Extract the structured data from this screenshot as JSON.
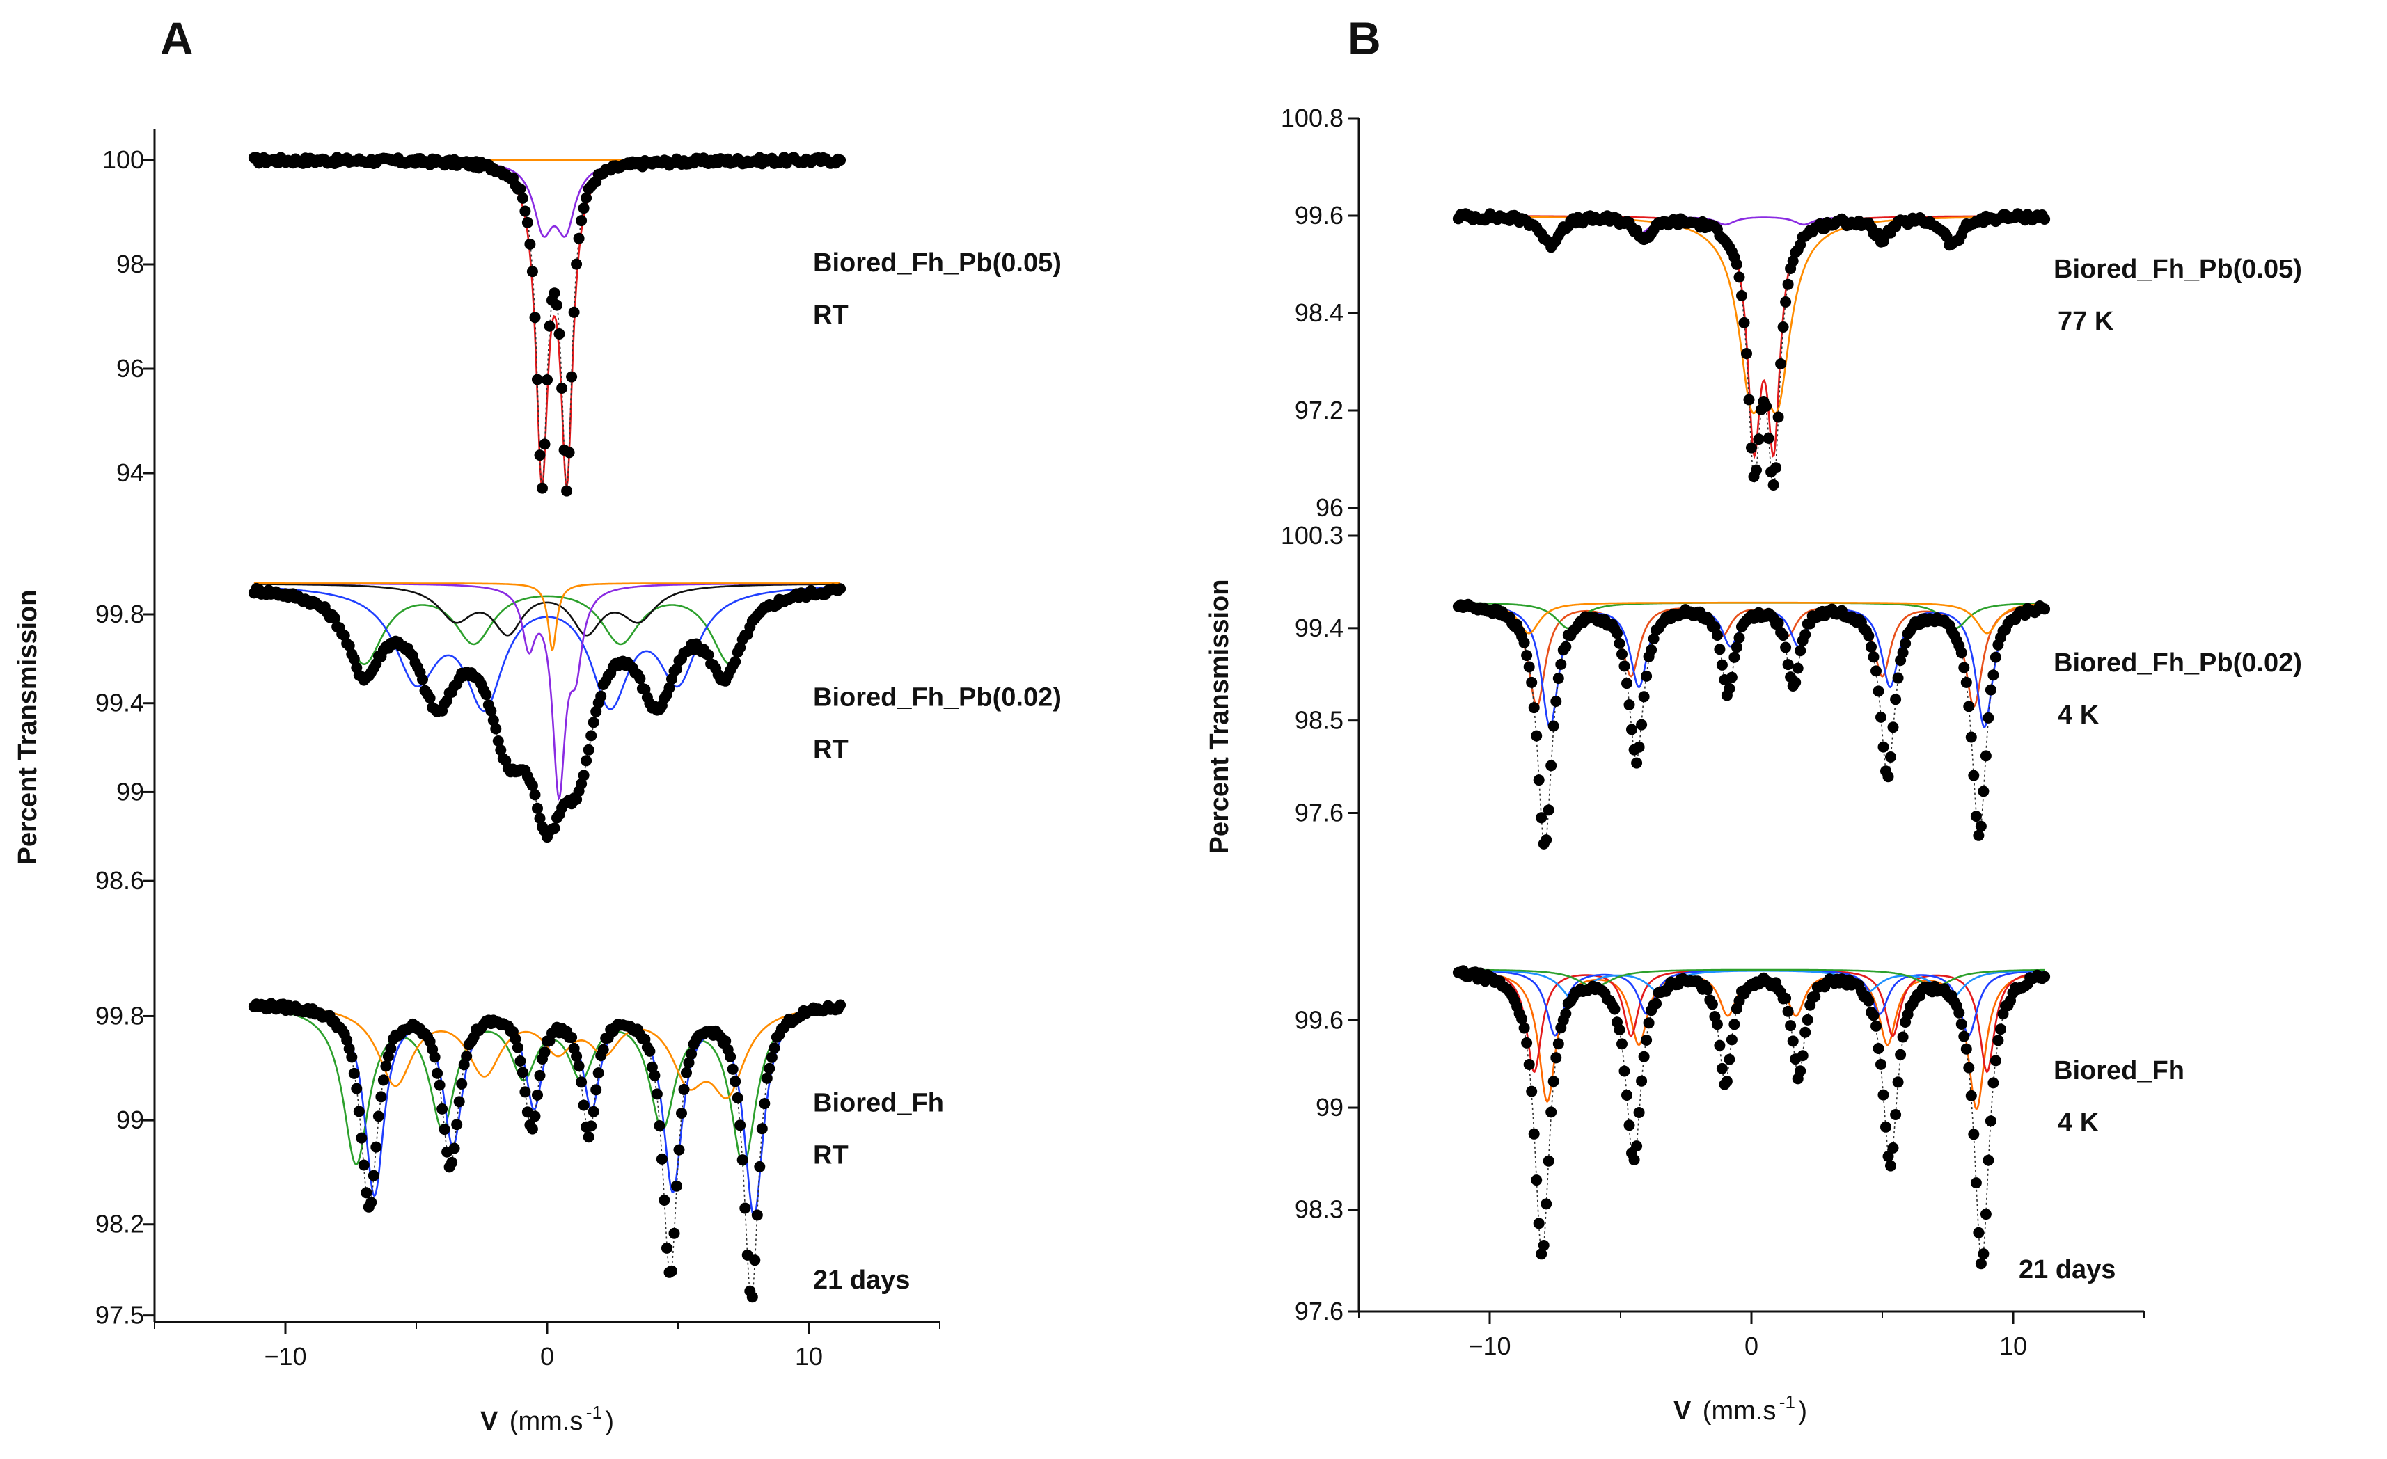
{
  "panels": [
    {
      "letter": "A",
      "xlabel": "V",
      "xunit": "(mm.s",
      "xunit_exp": "-1",
      "xunit_close": ")",
      "ylabel": "Percent Transmission"
    },
    {
      "letter": "B",
      "xlabel": "V",
      "xunit": "(mm.s",
      "xunit_exp": "-1",
      "xunit_close": ")",
      "ylabel": "Percent Transmission"
    }
  ],
  "chart_data": [
    {
      "type": "scatter",
      "panel": "A",
      "xlabel": "V (mm.s-1)",
      "ylabel": "Percent Transmission",
      "xlim": [
        -15,
        15
      ],
      "x_ticks": [
        -10,
        0,
        10
      ],
      "stack": [
        {
          "sample": "Biored_Fh_Pb(0.05)",
          "condition": "RT",
          "note": "",
          "yticks": [
            100,
            98,
            96,
            94
          ],
          "ylim": [
            93.8,
            100.6
          ],
          "baseline": 100,
          "min": 94.1,
          "peaks": [
            {
              "x": -0.2,
              "depth": 5.9,
              "w": 0.25
            },
            {
              "x": 0.75,
              "depth": 5.9,
              "w": 0.25
            }
          ],
          "fits": [
            {
              "color": "#e31a1c",
              "peaks": [
                {
                  "x": -0.2,
                  "depth": 5.8,
                  "w": 0.28
                },
                {
                  "x": 0.75,
                  "depth": 5.8,
                  "w": 0.28
                }
              ]
            },
            {
              "color": "#8a2be2",
              "peaks": [
                {
                  "x": -0.15,
                  "depth": 1.2,
                  "w": 0.45
                },
                {
                  "x": 0.7,
                  "depth": 1.2,
                  "w": 0.45
                }
              ]
            },
            {
              "color": "#ff8c00",
              "peaks": []
            }
          ]
        },
        {
          "sample": "Biored_Fh_Pb(0.02)",
          "condition": "RT",
          "note": "",
          "yticks": [
            99.8,
            99.4,
            99,
            98.6
          ],
          "ylim": [
            98.4,
            100.06
          ],
          "baseline": 99.94,
          "min": 98.75,
          "peaks": [
            {
              "x": -7.0,
              "depth": 0.35,
              "w": 0.8
            },
            {
              "x": -4.2,
              "depth": 0.45,
              "w": 0.9
            },
            {
              "x": -1.5,
              "depth": 0.55,
              "w": 0.9
            },
            {
              "x": 0.0,
              "depth": 0.75,
              "w": 0.8
            },
            {
              "x": 1.2,
              "depth": 0.6,
              "w": 0.8
            },
            {
              "x": 4.2,
              "depth": 0.45,
              "w": 0.9
            },
            {
              "x": 6.8,
              "depth": 0.35,
              "w": 0.8
            }
          ],
          "fits": [
            {
              "color": "#2ca02c",
              "peaks": [
                {
                  "x": -7.0,
                  "depth": 0.35,
                  "w": 0.9
                },
                {
                  "x": -2.8,
                  "depth": 0.25,
                  "w": 0.9
                },
                {
                  "x": 2.8,
                  "depth": 0.25,
                  "w": 0.9
                },
                {
                  "x": 7.0,
                  "depth": 0.35,
                  "w": 0.9
                }
              ]
            },
            {
              "color": "#1f3fff",
              "peaks": [
                {
                  "x": -5.0,
                  "depth": 0.4,
                  "w": 1.0
                },
                {
                  "x": -2.4,
                  "depth": 0.5,
                  "w": 0.9
                },
                {
                  "x": 2.4,
                  "depth": 0.5,
                  "w": 0.9
                },
                {
                  "x": 5.0,
                  "depth": 0.4,
                  "w": 0.9
                }
              ]
            },
            {
              "color": "#111111",
              "peaks": [
                {
                  "x": -3.5,
                  "depth": 0.15,
                  "w": 0.8
                },
                {
                  "x": -1.5,
                  "depth": 0.2,
                  "w": 0.7
                },
                {
                  "x": 1.5,
                  "depth": 0.2,
                  "w": 0.7
                },
                {
                  "x": 3.5,
                  "depth": 0.15,
                  "w": 0.8
                }
              ]
            },
            {
              "color": "#8a2be2",
              "peaks": [
                {
                  "x": -0.7,
                  "depth": 0.25,
                  "w": 0.3
                },
                {
                  "x": 0.45,
                  "depth": 0.9,
                  "w": 0.3
                },
                {
                  "x": 1.1,
                  "depth": 0.3,
                  "w": 0.3
                }
              ]
            },
            {
              "color": "#ff8c00",
              "peaks": [
                {
                  "x": 0.2,
                  "depth": 0.3,
                  "w": 0.2
                }
              ]
            }
          ]
        },
        {
          "sample": "Biored_Fh",
          "condition": "RT",
          "note": "21 days",
          "yticks": [
            99.8,
            99,
            98.2,
            97.5
          ],
          "ylim": [
            97.45,
            100.15
          ],
          "baseline": 99.9,
          "min": 97.45,
          "peaks": [
            {
              "x": -6.8,
              "depth": 1.55,
              "w": 0.4
            },
            {
              "x": -3.7,
              "depth": 1.2,
              "w": 0.4
            },
            {
              "x": -0.6,
              "depth": 0.9,
              "w": 0.35
            },
            {
              "x": 1.6,
              "depth": 0.95,
              "w": 0.35
            },
            {
              "x": 4.7,
              "depth": 2.05,
              "w": 0.35
            },
            {
              "x": 7.8,
              "depth": 2.25,
              "w": 0.35
            }
          ],
          "fits": [
            {
              "color": "#2ca02c",
              "peaks": [
                {
                  "x": -7.3,
                  "depth": 1.2,
                  "w": 0.6
                },
                {
                  "x": -4.0,
                  "depth": 0.9,
                  "w": 0.6
                },
                {
                  "x": -0.9,
                  "depth": 0.5,
                  "w": 0.6
                },
                {
                  "x": 1.3,
                  "depth": 0.5,
                  "w": 0.6
                },
                {
                  "x": 4.4,
                  "depth": 0.9,
                  "w": 0.6
                },
                {
                  "x": 7.5,
                  "depth": 1.2,
                  "w": 0.6
                }
              ]
            },
            {
              "color": "#1f3fff",
              "peaks": [
                {
                  "x": -6.6,
                  "depth": 1.45,
                  "w": 0.45
                },
                {
                  "x": -3.6,
                  "depth": 1.05,
                  "w": 0.45
                },
                {
                  "x": -0.5,
                  "depth": 0.75,
                  "w": 0.4
                },
                {
                  "x": 1.7,
                  "depth": 0.75,
                  "w": 0.4
                },
                {
                  "x": 4.8,
                  "depth": 1.4,
                  "w": 0.45
                },
                {
                  "x": 7.9,
                  "depth": 1.6,
                  "w": 0.45
                }
              ]
            },
            {
              "color": "#ff8c00",
              "peaks": [
                {
                  "x": -5.8,
                  "depth": 0.6,
                  "w": 0.8
                },
                {
                  "x": -2.4,
                  "depth": 0.5,
                  "w": 0.8
                },
                {
                  "x": 0.4,
                  "depth": 0.3,
                  "w": 0.7
                },
                {
                  "x": 2.2,
                  "depth": 0.3,
                  "w": 0.7
                },
                {
                  "x": 5.4,
                  "depth": 0.5,
                  "w": 0.8
                },
                {
                  "x": 6.9,
                  "depth": 0.6,
                  "w": 0.8
                }
              ]
            }
          ]
        }
      ]
    },
    {
      "type": "scatter",
      "panel": "B",
      "xlabel": "V (mm.s-1)",
      "ylabel": "Percent Transmission",
      "xlim": [
        -15,
        15
      ],
      "x_ticks": [
        -10,
        0,
        10
      ],
      "stack": [
        {
          "sample": "Biored_Fh_Pb(0.05)",
          "condition": "77 K",
          "note": "",
          "yticks": [
            100.8,
            99.6,
            98.4,
            97.2,
            96
          ],
          "ylim": [
            96,
            100.8
          ],
          "baseline": 99.6,
          "min": 96.5,
          "peaks": [
            {
              "x": -7.7,
              "depth": 0.35,
              "w": 0.4
            },
            {
              "x": -4.1,
              "depth": 0.25,
              "w": 0.4
            },
            {
              "x": 0.1,
              "depth": 2.85,
              "w": 0.3
            },
            {
              "x": 0.85,
              "depth": 2.95,
              "w": 0.3
            },
            {
              "x": 5.0,
              "depth": 0.25,
              "w": 0.4
            },
            {
              "x": 7.7,
              "depth": 0.35,
              "w": 0.4
            }
          ],
          "fits": [
            {
              "color": "#e31a1c",
              "peaks": [
                {
                  "x": 0.1,
                  "depth": 2.6,
                  "w": 0.3
                },
                {
                  "x": 0.85,
                  "depth": 2.6,
                  "w": 0.3
                }
              ]
            },
            {
              "color": "#ff8c00",
              "peaks": [
                {
                  "x": 0.0,
                  "depth": 1.9,
                  "w": 0.6
                },
                {
                  "x": 1.0,
                  "depth": 1.9,
                  "w": 0.6
                }
              ]
            },
            {
              "color": "#8a2be2",
              "peaks": [
                {
                  "x": -7.6,
                  "depth": 0.3,
                  "w": 0.45
                },
                {
                  "x": -4.2,
                  "depth": 0.2,
                  "w": 0.45
                },
                {
                  "x": -1.0,
                  "depth": 0.1,
                  "w": 0.45
                },
                {
                  "x": 2.0,
                  "depth": 0.1,
                  "w": 0.45
                },
                {
                  "x": 5.0,
                  "depth": 0.2,
                  "w": 0.45
                },
                {
                  "x": 7.6,
                  "depth": 0.3,
                  "w": 0.45
                }
              ]
            }
          ]
        },
        {
          "sample": "Biored_Fh_Pb(0.02)",
          "condition": "4 K",
          "note": "",
          "yticks": [
            100.3,
            99.4,
            98.5,
            97.6
          ],
          "ylim": [
            96.98,
            100.3
          ],
          "baseline": 99.65,
          "min": 97.2,
          "peaks": [
            {
              "x": -7.9,
              "depth": 2.35,
              "w": 0.35
            },
            {
              "x": -4.4,
              "depth": 1.5,
              "w": 0.35
            },
            {
              "x": -0.9,
              "depth": 0.85,
              "w": 0.3
            },
            {
              "x": 1.6,
              "depth": 0.8,
              "w": 0.3
            },
            {
              "x": 5.2,
              "depth": 1.65,
              "w": 0.35
            },
            {
              "x": 8.7,
              "depth": 2.25,
              "w": 0.35
            }
          ],
          "fits": [
            {
              "color": "#e8501a",
              "peaks": [
                {
                  "x": -8.2,
                  "depth": 1.0,
                  "w": 0.4
                },
                {
                  "x": -4.6,
                  "depth": 0.7,
                  "w": 0.4
                },
                {
                  "x": -1.1,
                  "depth": 0.3,
                  "w": 0.4
                },
                {
                  "x": 1.4,
                  "depth": 0.3,
                  "w": 0.4
                },
                {
                  "x": 5.0,
                  "depth": 0.7,
                  "w": 0.4
                },
                {
                  "x": 8.5,
                  "depth": 1.0,
                  "w": 0.4
                }
              ]
            },
            {
              "color": "#1f3fff",
              "peaks": [
                {
                  "x": -7.7,
                  "depth": 1.2,
                  "w": 0.4
                },
                {
                  "x": -4.3,
                  "depth": 0.8,
                  "w": 0.4
                },
                {
                  "x": -0.8,
                  "depth": 0.4,
                  "w": 0.4
                },
                {
                  "x": 1.8,
                  "depth": 0.4,
                  "w": 0.4
                },
                {
                  "x": 5.3,
                  "depth": 0.8,
                  "w": 0.4
                },
                {
                  "x": 8.9,
                  "depth": 1.2,
                  "w": 0.4
                }
              ]
            },
            {
              "color": "#2ca02c",
              "peaks": [
                {
                  "x": -7.0,
                  "depth": 0.25,
                  "w": 0.6
                },
                {
                  "x": 7.8,
                  "depth": 0.25,
                  "w": 0.6
                }
              ]
            },
            {
              "color": "#ff8c00",
              "peaks": [
                {
                  "x": -8.5,
                  "depth": 0.3,
                  "w": 0.5
                },
                {
                  "x": 9.0,
                  "depth": 0.3,
                  "w": 0.5
                }
              ]
            }
          ]
        },
        {
          "sample": "Biored_Fh",
          "condition": "4 K",
          "note": "21 days",
          "yticks": [
            99.6,
            99,
            98.3,
            97.6
          ],
          "ylim": [
            97.6,
            100.3
          ],
          "baseline": 99.95,
          "min": 97.95,
          "peaks": [
            {
              "x": -8.0,
              "depth": 1.95,
              "w": 0.35
            },
            {
              "x": -4.5,
              "depth": 1.3,
              "w": 0.35
            },
            {
              "x": -1.0,
              "depth": 0.75,
              "w": 0.3
            },
            {
              "x": 1.8,
              "depth": 0.7,
              "w": 0.3
            },
            {
              "x": 5.3,
              "depth": 1.3,
              "w": 0.35
            },
            {
              "x": 8.8,
              "depth": 2.0,
              "w": 0.35
            }
          ],
          "fits": [
            {
              "color": "#ff6a00",
              "peaks": [
                {
                  "x": -7.8,
                  "depth": 0.9,
                  "w": 0.4
                },
                {
                  "x": -4.3,
                  "depth": 0.5,
                  "w": 0.4
                },
                {
                  "x": -0.9,
                  "depth": 0.3,
                  "w": 0.4
                },
                {
                  "x": 1.7,
                  "depth": 0.3,
                  "w": 0.4
                },
                {
                  "x": 5.2,
                  "depth": 0.5,
                  "w": 0.4
                },
                {
                  "x": 8.6,
                  "depth": 0.95,
                  "w": 0.4
                }
              ]
            },
            {
              "color": "#e31a1c",
              "peaks": [
                {
                  "x": -8.3,
                  "depth": 0.7,
                  "w": 0.35
                },
                {
                  "x": -4.6,
                  "depth": 0.45,
                  "w": 0.35
                },
                {
                  "x": 5.4,
                  "depth": 0.45,
                  "w": 0.35
                },
                {
                  "x": 9.0,
                  "depth": 0.7,
                  "w": 0.35
                }
              ]
            },
            {
              "color": "#1f3fff",
              "peaks": [
                {
                  "x": -7.5,
                  "depth": 0.45,
                  "w": 0.4
                },
                {
                  "x": -4.0,
                  "depth": 0.3,
                  "w": 0.4
                },
                {
                  "x": 4.9,
                  "depth": 0.3,
                  "w": 0.4
                },
                {
                  "x": 8.3,
                  "depth": 0.45,
                  "w": 0.4
                }
              ]
            },
            {
              "color": "#1e90ff",
              "peaks": [
                {
                  "x": -6.8,
                  "depth": 0.2,
                  "w": 0.6
                },
                {
                  "x": -3.5,
                  "depth": 0.15,
                  "w": 0.6
                },
                {
                  "x": 4.4,
                  "depth": 0.15,
                  "w": 0.6
                },
                {
                  "x": 7.6,
                  "depth": 0.2,
                  "w": 0.6
                }
              ]
            },
            {
              "color": "#2ca02c",
              "peaks": [
                {
                  "x": -6.0,
                  "depth": 0.12,
                  "w": 0.8
                },
                {
                  "x": 7.0,
                  "depth": 0.12,
                  "w": 0.8
                }
              ]
            }
          ]
        }
      ]
    }
  ]
}
